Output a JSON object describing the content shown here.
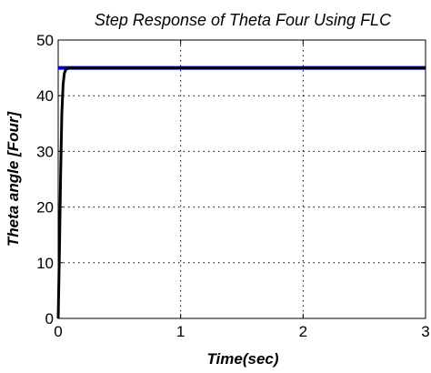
{
  "chart_data": {
    "type": "line",
    "title": "Step Response of Theta Four Using FLC",
    "xlabel": "Time(sec)",
    "ylabel": "Theta angle [Four]",
    "xlim": [
      0,
      3
    ],
    "ylim": [
      0,
      50
    ],
    "xticks": [
      "0",
      "1",
      "2",
      "3"
    ],
    "yticks": [
      "0",
      "10",
      "20",
      "30",
      "40",
      "50"
    ],
    "grid": true,
    "series": [
      {
        "color": "#0000cc",
        "x": [
          0,
          3
        ],
        "y": [
          45,
          45
        ]
      },
      {
        "color": "#000000",
        "x": [
          0,
          0.01,
          0.02,
          0.03,
          0.04,
          0.05,
          0.06,
          0.07,
          0.08,
          0.1,
          3
        ],
        "y": [
          0,
          12,
          26,
          37,
          42,
          44,
          44.6,
          44.8,
          44.9,
          45,
          45
        ]
      }
    ]
  }
}
